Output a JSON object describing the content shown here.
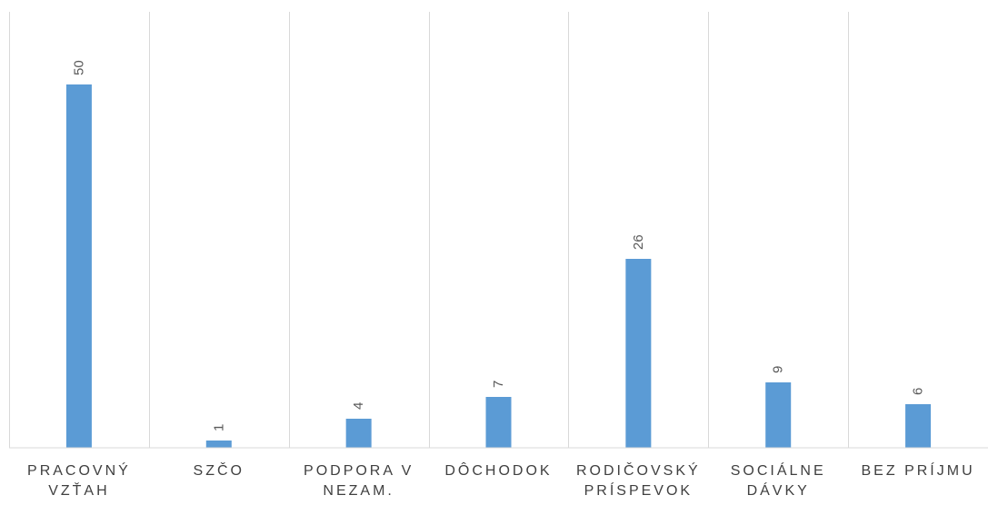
{
  "chart_data": {
    "type": "bar",
    "title": "",
    "xlabel": "",
    "ylabel": "",
    "categories": [
      "PRACOVNÝ VZŤAH",
      "SZČO",
      "PODPORA V NEZAM.",
      "DÔCHODOK",
      "RODIČOVSKÝ PRÍSPEVOK",
      "SOCIÁLNE DÁVKY",
      "BEZ PRÍJMU"
    ],
    "values": [
      50,
      1,
      4,
      7,
      26,
      9,
      6
    ],
    "data_labels": [
      "50",
      "1",
      "4",
      "7",
      "26",
      "9",
      "6"
    ],
    "ylim": [
      0,
      60
    ],
    "grid": "vertical",
    "legend": "none",
    "bar_color": "#5B9BD5",
    "grid_color": "#D9D9D9",
    "label_color": "#595959"
  }
}
